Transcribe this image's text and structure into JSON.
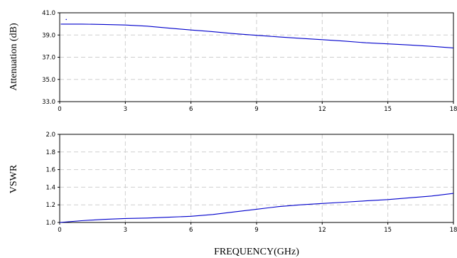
{
  "chart_data": [
    {
      "type": "line",
      "ylabel": "Attenuation (dB)",
      "xlabel": "",
      "xlim": [
        0,
        18
      ],
      "ylim": [
        33.0,
        41.0
      ],
      "xticks": [
        "0",
        "3",
        "6",
        "9",
        "12",
        "15",
        "18"
      ],
      "xtick_values": [
        0,
        3,
        6,
        9,
        12,
        15,
        18
      ],
      "yticks": [
        "33.0",
        "35.0",
        "37.0",
        "39.0",
        "41.0"
      ],
      "ytick_values": [
        33,
        35,
        37,
        39,
        41
      ],
      "grid": true,
      "series": [
        {
          "color": "#0000cc",
          "x": [
            0.05,
            1,
            2,
            3,
            4,
            5,
            6,
            7,
            8,
            9,
            10,
            11,
            12,
            13,
            14,
            15,
            16,
            17,
            18
          ],
          "y": [
            39.98,
            39.98,
            39.95,
            39.9,
            39.8,
            39.62,
            39.45,
            39.3,
            39.12,
            38.97,
            38.83,
            38.7,
            38.58,
            38.45,
            38.3,
            38.2,
            38.1,
            37.98,
            37.83
          ]
        }
      ],
      "annotations": [
        {
          "x": 0.3,
          "y": 40.4,
          "marker": "dot"
        }
      ]
    },
    {
      "type": "line",
      "ylabel": "VSWR",
      "xlabel": "FREQUENCY(GHz)",
      "xlim": [
        0,
        18
      ],
      "ylim": [
        1.0,
        2.0
      ],
      "xticks": [
        "0",
        "3",
        "6",
        "9",
        "12",
        "15",
        "18"
      ],
      "xtick_values": [
        0,
        3,
        6,
        9,
        12,
        15,
        18
      ],
      "yticks": [
        "1.0",
        "1.2",
        "1.4",
        "1.6",
        "1.8",
        "2.0"
      ],
      "ytick_values": [
        1.0,
        1.2,
        1.4,
        1.6,
        1.8,
        2.0
      ],
      "grid": true,
      "series": [
        {
          "color": "#0000cc",
          "x": [
            0,
            1,
            2,
            3,
            4,
            5,
            6,
            7,
            8,
            9,
            10,
            11,
            12,
            13,
            14,
            15,
            16,
            17,
            18
          ],
          "y": [
            1.0,
            1.02,
            1.035,
            1.045,
            1.05,
            1.06,
            1.07,
            1.09,
            1.12,
            1.15,
            1.18,
            1.2,
            1.215,
            1.23,
            1.245,
            1.26,
            1.28,
            1.3,
            1.33
          ]
        }
      ]
    }
  ]
}
